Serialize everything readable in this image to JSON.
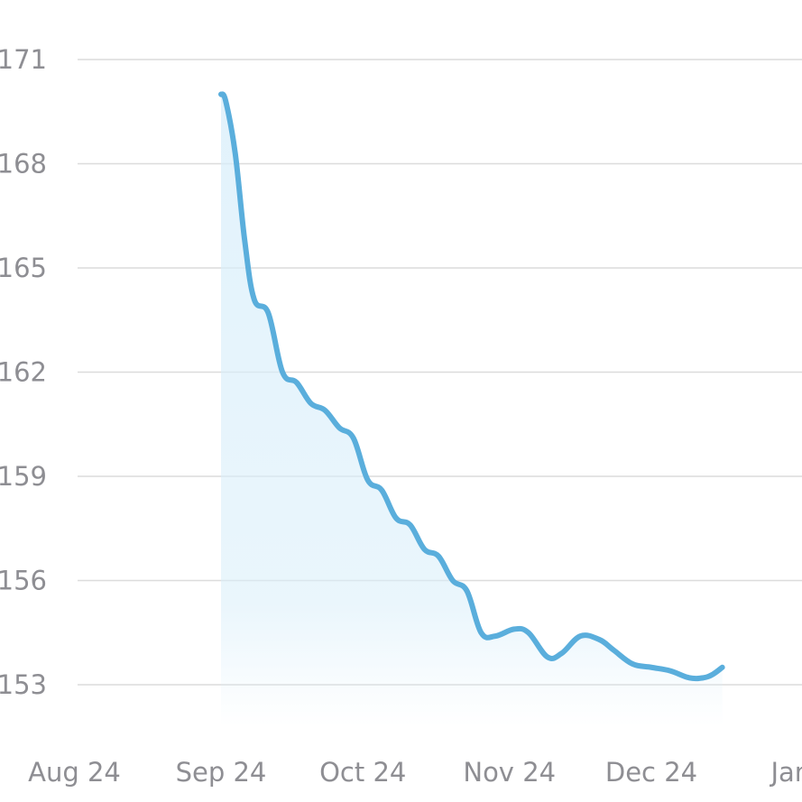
{
  "chart_data": {
    "type": "area",
    "title": "",
    "xlabel": "",
    "ylabel": "",
    "grid": true,
    "legend": "none",
    "line_color": "#5aaedc",
    "fill_color": "#d8eefa",
    "y_ticks": [
      171,
      168,
      165,
      162,
      159,
      156,
      153
    ],
    "ylim": [
      151.2,
      172.2
    ],
    "x_ticks": [
      {
        "label": "Aug 24",
        "date": "2024-08-24"
      },
      {
        "label": "Sep 24",
        "date": "2024-09-24"
      },
      {
        "label": "Oct 24",
        "date": "2024-10-24"
      },
      {
        "label": "Nov 24",
        "date": "2024-11-24"
      },
      {
        "label": "Dec 24",
        "date": "2024-12-24"
      },
      {
        "label": "Jan",
        "date": "2025-01-24"
      }
    ],
    "xlim": [
      "2024-08-20",
      "2025-01-31"
    ],
    "series": [
      {
        "points": [
          {
            "x": "2024-09-24",
            "y": 170.0
          },
          {
            "x": "2024-09-25",
            "y": 169.8
          },
          {
            "x": "2024-09-27",
            "y": 168.3
          },
          {
            "x": "2024-09-29",
            "y": 165.8
          },
          {
            "x": "2024-10-01",
            "y": 164.1
          },
          {
            "x": "2024-10-04",
            "y": 163.7
          },
          {
            "x": "2024-10-07",
            "y": 162.0
          },
          {
            "x": "2024-10-10",
            "y": 161.7
          },
          {
            "x": "2024-10-13",
            "y": 161.1
          },
          {
            "x": "2024-10-16",
            "y": 160.9
          },
          {
            "x": "2024-10-19",
            "y": 160.4
          },
          {
            "x": "2024-10-22",
            "y": 160.1
          },
          {
            "x": "2024-10-25",
            "y": 158.9
          },
          {
            "x": "2024-10-28",
            "y": 158.6
          },
          {
            "x": "2024-10-31",
            "y": 157.8
          },
          {
            "x": "2024-11-03",
            "y": 157.6
          },
          {
            "x": "2024-11-06",
            "y": 156.9
          },
          {
            "x": "2024-11-09",
            "y": 156.7
          },
          {
            "x": "2024-11-12",
            "y": 156.0
          },
          {
            "x": "2024-11-15",
            "y": 155.7
          },
          {
            "x": "2024-11-18",
            "y": 154.5
          },
          {
            "x": "2024-11-21",
            "y": 154.4
          },
          {
            "x": "2024-11-25",
            "y": 154.6
          },
          {
            "x": "2024-11-28",
            "y": 154.5
          },
          {
            "x": "2024-12-02",
            "y": 153.8
          },
          {
            "x": "2024-12-05",
            "y": 153.9
          },
          {
            "x": "2024-12-09",
            "y": 154.4
          },
          {
            "x": "2024-12-13",
            "y": 154.3
          },
          {
            "x": "2024-12-16",
            "y": 154.0
          },
          {
            "x": "2024-12-20",
            "y": 153.6
          },
          {
            "x": "2024-12-24",
            "y": 153.5
          },
          {
            "x": "2024-12-28",
            "y": 153.4
          },
          {
            "x": "2025-01-01",
            "y": 153.2
          },
          {
            "x": "2025-01-04",
            "y": 153.2
          },
          {
            "x": "2025-01-06",
            "y": 153.3
          },
          {
            "x": "2025-01-08",
            "y": 153.5
          }
        ]
      }
    ]
  }
}
